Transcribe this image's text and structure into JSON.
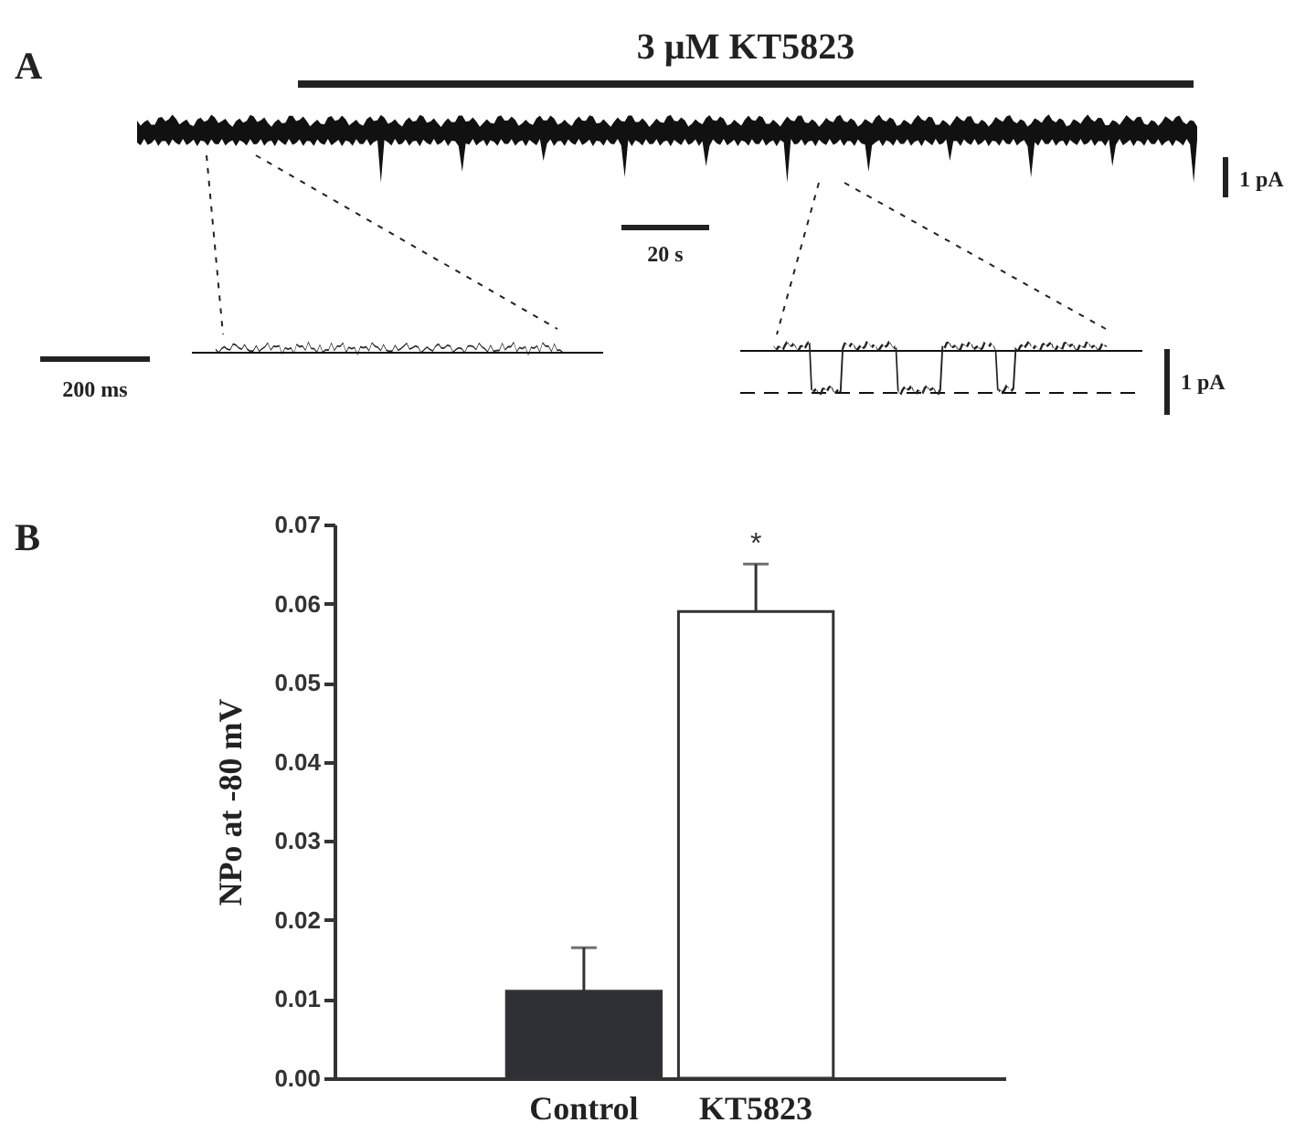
{
  "chart_data": {
    "type": "bar",
    "ylabel": "NPo at -80 mV",
    "categories": [
      "Control",
      "KT5823"
    ],
    "values": [
      0.011,
      0.059
    ],
    "colors": [
      "#2e3035",
      "#ffffff"
    ],
    "errors": [
      [
        0.011,
        0.0165
      ],
      [
        0.059,
        0.065
      ]
    ],
    "ylim": [
      0,
      0.07
    ],
    "yticks": [
      {
        "value": 0,
        "label": "0.00"
      },
      0.01,
      0.02,
      0.03,
      0.04,
      0.05,
      0.06,
      0.07
    ],
    "annotations": [
      "A",
      "3 µM KT5823",
      "1 pA",
      "20 s",
      "200 ms",
      "1 pA",
      "B",
      {
        "text": "*",
        "x": "KT5823",
        "y": 0.065
      }
    ]
  }
}
